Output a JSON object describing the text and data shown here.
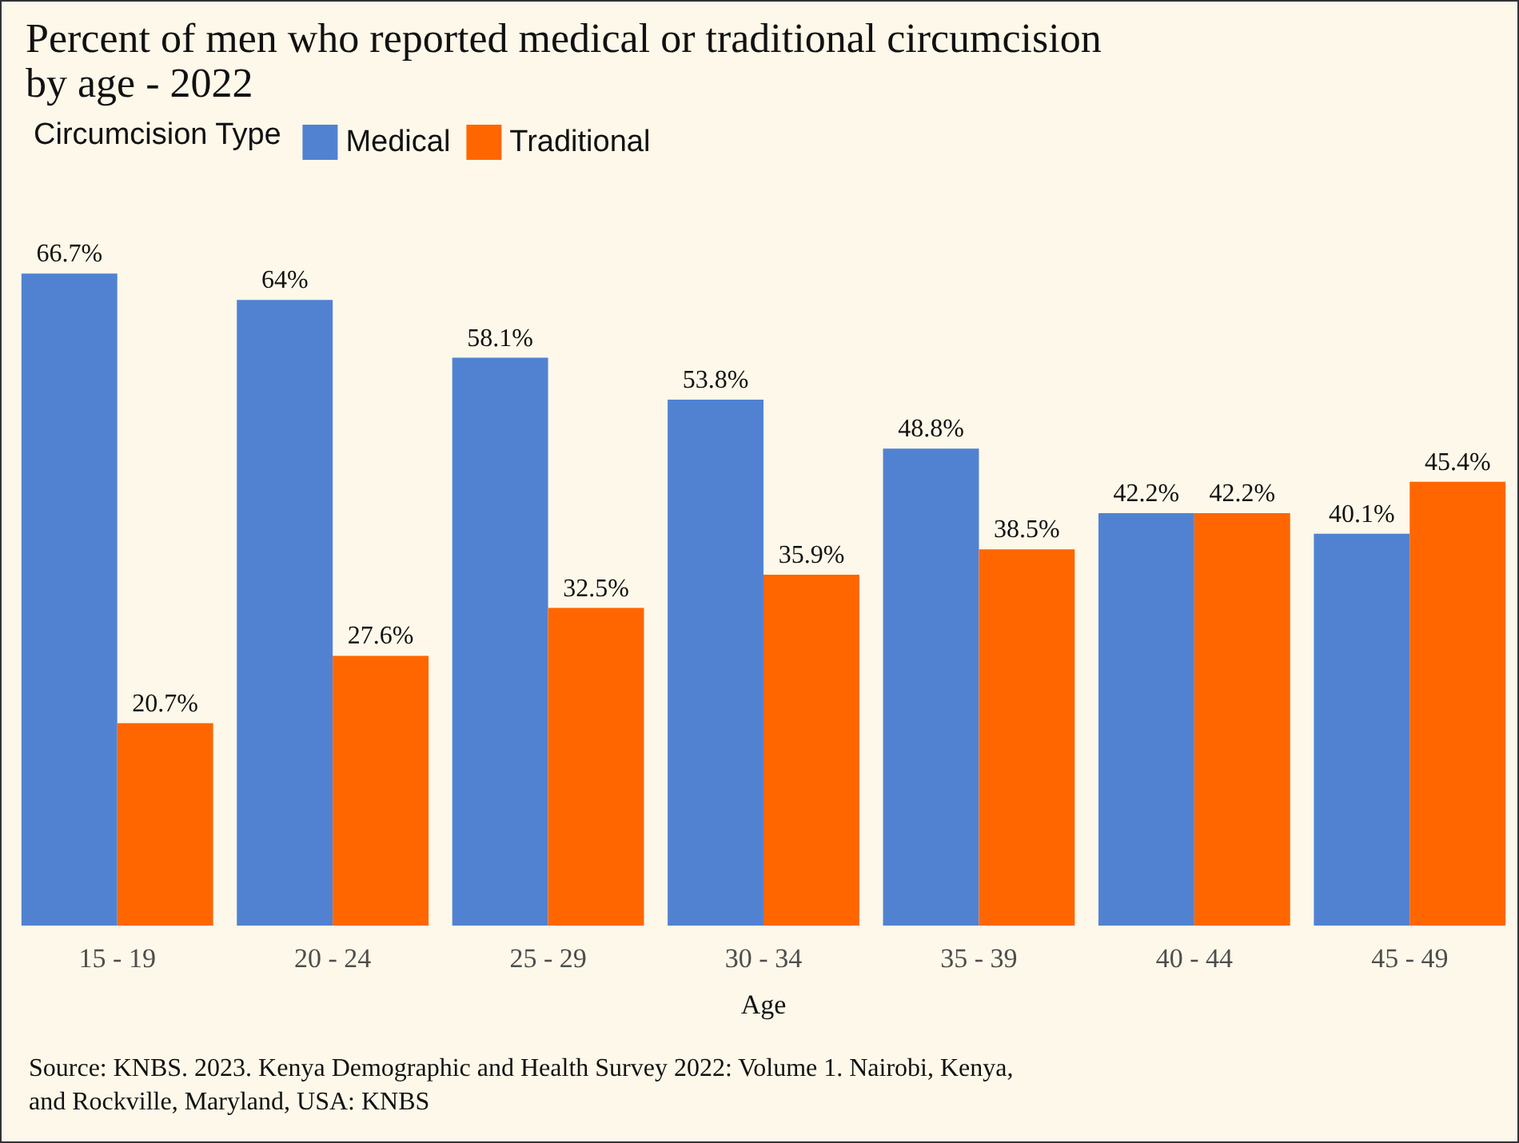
{
  "chart_data": {
    "type": "bar",
    "title": "Percent of men who reported medical or traditional circumcision by age - 2022",
    "xlabel": "Age",
    "legend_title": "Circumcision Type",
    "categories": [
      "15 - 19",
      "20 - 24",
      "25 - 29",
      "30 - 34",
      "35 - 39",
      "40 - 44",
      "45 - 49"
    ],
    "series": [
      {
        "name": "Medical",
        "color": "#5182d2",
        "values": [
          66.7,
          64,
          58.1,
          53.8,
          48.8,
          42.2,
          40.1
        ],
        "value_labels": [
          "66.7%",
          "64%",
          "58.1%",
          "53.8%",
          "48.8%",
          "42.2%",
          "40.1%"
        ]
      },
      {
        "name": "Traditional",
        "color": "#ff6600",
        "values": [
          20.7,
          27.6,
          32.5,
          35.9,
          38.5,
          42.2,
          45.4
        ],
        "value_labels": [
          "20.7%",
          "27.6%",
          "32.5%",
          "35.9%",
          "38.5%",
          "42.2%",
          "45.4%"
        ]
      }
    ],
    "legend": "top left",
    "grid": false,
    "tick_labels": "x",
    "annotations": [
      "Source: KNBS. 2023. Kenya Demographic and Health Survey 2022: Volume 1. Nairobi, Kenya, and Rockville, Maryland, USA: KNBS"
    ]
  }
}
